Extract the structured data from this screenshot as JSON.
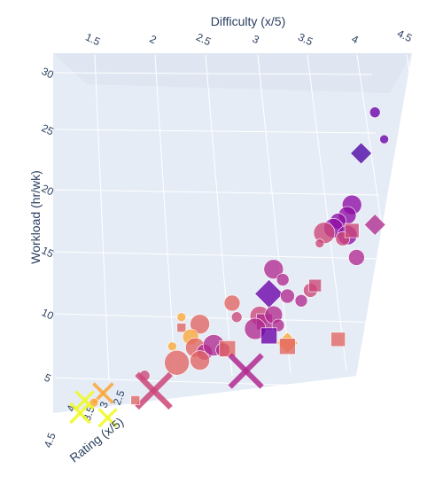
{
  "chart_data": {
    "type": "scatter3d",
    "axes": {
      "x": {
        "label": "Difficulty (x/5)",
        "range": [
          1.2,
          4.6
        ],
        "ticks": [
          "1.5",
          "2",
          "2.5",
          "3",
          "3.5",
          "4",
          "4.5"
        ]
      },
      "y": {
        "label": "Workload (hr/wk)",
        "range": [
          3,
          31
        ],
        "ticks": [
          "5",
          "10",
          "15",
          "20",
          "25",
          "30"
        ]
      },
      "z": {
        "label": "Rating (x/5)",
        "ticks": [
          "4.5",
          "4",
          "3.5",
          "3",
          "2.5"
        ]
      }
    },
    "grid": true,
    "legend": "none",
    "colorscale": [
      "#f0f921",
      "#fca636",
      "#e16462",
      "#b12a90",
      "#6a00a8",
      "#4b03a1"
    ],
    "points": [
      {
        "x": 4.3,
        "y": 28.7,
        "symbol": "circle",
        "size": 6,
        "color": "#6a00a8"
      },
      {
        "x": 4.4,
        "y": 26.4,
        "symbol": "circle",
        "size": 5,
        "color": "#6a00a8"
      },
      {
        "x": 4.15,
        "y": 25.2,
        "symbol": "diamond",
        "size": 12,
        "color": "#4b03a1"
      },
      {
        "x": 4.05,
        "y": 20.8,
        "symbol": "circle",
        "size": 11,
        "color": "#8e0ca4"
      },
      {
        "x": 4.0,
        "y": 19.9,
        "symbol": "circle",
        "size": 10,
        "color": "#8e0ca4"
      },
      {
        "x": 3.9,
        "y": 19.4,
        "symbol": "circle",
        "size": 9,
        "color": "#8e0ca4"
      },
      {
        "x": 3.85,
        "y": 18.8,
        "symbol": "circle",
        "size": 11,
        "color": "#8e0ca4"
      },
      {
        "x": 4.0,
        "y": 18.2,
        "symbol": "circle",
        "size": 11,
        "color": "#8e0ca4"
      },
      {
        "x": 3.75,
        "y": 18.4,
        "symbol": "circle",
        "size": 12,
        "color": "#cc4778"
      },
      {
        "x": 3.95,
        "y": 17.9,
        "symbol": "circle",
        "size": 8,
        "color": "#cc4778"
      },
      {
        "x": 4.05,
        "y": 18.6,
        "symbol": "square",
        "size": 8,
        "color": "#cc4778"
      },
      {
        "x": 4.3,
        "y": 19.1,
        "symbol": "diamond",
        "size": 12,
        "color": "#b12a90"
      },
      {
        "x": 4.1,
        "y": 16.3,
        "symbol": "circle",
        "size": 9,
        "color": "#b12a90"
      },
      {
        "x": 3.7,
        "y": 17.5,
        "symbol": "circle",
        "size": 5,
        "color": "#cc4778"
      },
      {
        "x": 3.2,
        "y": 15.3,
        "symbol": "circle",
        "size": 11,
        "color": "#b12a90"
      },
      {
        "x": 3.3,
        "y": 14.4,
        "symbol": "circle",
        "size": 7,
        "color": "#b12a90"
      },
      {
        "x": 3.15,
        "y": 13.2,
        "symbol": "diamond",
        "size": 16,
        "color": "#6a00a8"
      },
      {
        "x": 3.35,
        "y": 13.0,
        "symbol": "circle",
        "size": 8,
        "color": "#b12a90"
      },
      {
        "x": 3.6,
        "y": 13.5,
        "symbol": "circle",
        "size": 8,
        "color": "#cc4778"
      },
      {
        "x": 3.65,
        "y": 13.9,
        "symbol": "square",
        "size": 7,
        "color": "#cc4778"
      },
      {
        "x": 3.5,
        "y": 12.6,
        "symbol": "circle",
        "size": 7,
        "color": "#b12a90"
      },
      {
        "x": 2.75,
        "y": 12.4,
        "symbol": "circle",
        "size": 9,
        "color": "#e16462"
      },
      {
        "x": 2.8,
        "y": 11.2,
        "symbol": "circle",
        "size": 6,
        "color": "#cc4778"
      },
      {
        "x": 3.05,
        "y": 11.3,
        "symbol": "circle",
        "size": 11,
        "color": "#cc4778"
      },
      {
        "x": 3.1,
        "y": 10.8,
        "symbol": "square",
        "size": 9,
        "color": "#b12a90"
      },
      {
        "x": 3.2,
        "y": 11.4,
        "symbol": "circle",
        "size": 10,
        "color": "#b12a90"
      },
      {
        "x": 3.25,
        "y": 10.5,
        "symbol": "circle",
        "size": 7,
        "color": "#b12a90"
      },
      {
        "x": 3.0,
        "y": 10.2,
        "symbol": "circle",
        "size": 12,
        "color": "#b12a90"
      },
      {
        "x": 3.15,
        "y": 9.6,
        "symbol": "square",
        "size": 9,
        "color": "#6a00a8"
      },
      {
        "x": 3.35,
        "y": 9.0,
        "symbol": "diamond",
        "size": 12,
        "color": "#fca636"
      },
      {
        "x": 3.35,
        "y": 8.7,
        "symbol": "square",
        "size": 9,
        "color": "#e16462"
      },
      {
        "x": 3.9,
        "y": 9.3,
        "symbol": "square",
        "size": 8,
        "color": "#e16462"
      },
      {
        "x": 2.2,
        "y": 11.2,
        "symbol": "circle",
        "size": 5,
        "color": "#fca636"
      },
      {
        "x": 2.4,
        "y": 10.6,
        "symbol": "circle",
        "size": 11,
        "color": "#e16462"
      },
      {
        "x": 2.2,
        "y": 10.3,
        "symbol": "square",
        "size": 5,
        "color": "#e16462"
      },
      {
        "x": 2.3,
        "y": 9.5,
        "symbol": "circle",
        "size": 9,
        "color": "#fca636"
      },
      {
        "x": 2.1,
        "y": 8.7,
        "symbol": "circle",
        "size": 5,
        "color": "#fca636"
      },
      {
        "x": 2.35,
        "y": 8.6,
        "symbol": "circle",
        "size": 11,
        "color": "#e16462"
      },
      {
        "x": 2.45,
        "y": 8.2,
        "symbol": "circle",
        "size": 9,
        "color": "#b12a90"
      },
      {
        "x": 2.55,
        "y": 8.8,
        "symbol": "circle",
        "size": 12,
        "color": "#b12a90"
      },
      {
        "x": 2.65,
        "y": 8.4,
        "symbol": "circle",
        "size": 8,
        "color": "#b12a90"
      },
      {
        "x": 2.7,
        "y": 8.5,
        "symbol": "square",
        "size": 9,
        "color": "#e16462"
      },
      {
        "x": 2.4,
        "y": 7.5,
        "symbol": "circle",
        "size": 11,
        "color": "#e16462"
      },
      {
        "x": 2.15,
        "y": 7.3,
        "symbol": "circle",
        "size": 14,
        "color": "#e16462"
      },
      {
        "x": 2.9,
        "y": 6.6,
        "symbol": "x",
        "size": 18,
        "color": "#b12a90"
      },
      {
        "x": 1.8,
        "y": 6.2,
        "symbol": "circle",
        "size": 6,
        "color": "#cc4778"
      },
      {
        "x": 1.9,
        "y": 4.9,
        "symbol": "x",
        "size": 19,
        "color": "#cc4778"
      },
      {
        "x": 1.7,
        "y": 4.1,
        "symbol": "square",
        "size": 5,
        "color": "#e16462"
      },
      {
        "x": 1.35,
        "y": 4.7,
        "symbol": "x",
        "size": 11,
        "color": "#fca636"
      },
      {
        "x": 1.25,
        "y": 3.9,
        "symbol": "circle",
        "size": 5,
        "color": "#fca636"
      },
      {
        "x": 1.15,
        "y": 4.1,
        "symbol": "x",
        "size": 10,
        "color": "#f0f921"
      },
      {
        "x": 1.1,
        "y": 3.0,
        "symbol": "x",
        "size": 11,
        "color": "#f0f921"
      },
      {
        "x": 1.4,
        "y": 2.6,
        "symbol": "x",
        "size": 10,
        "color": "#f0f921"
      }
    ]
  }
}
